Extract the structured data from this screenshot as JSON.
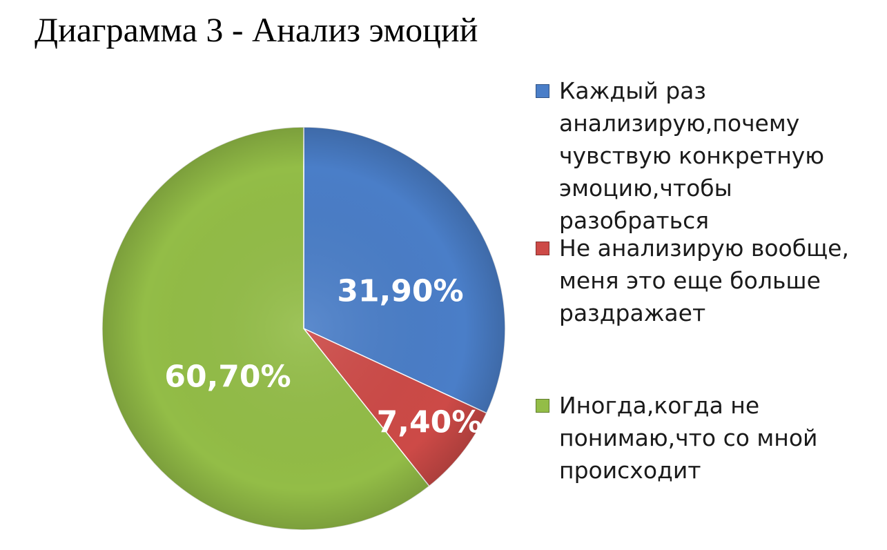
{
  "chart_data": {
    "type": "pie",
    "title": "Диаграмма 3 - Анализ эмоций",
    "slices": [
      {
        "label": "Каждый раз анализирую,почему чувствую конкретную эмоцию,чтобы разобраться",
        "value": 31.9,
        "display": "31,90%",
        "color": "#4a7ec8"
      },
      {
        "label": "Не анализирую вообще, меня это еще больше раздражает",
        "value": 7.4,
        "display": "7,40%",
        "color": "#cd4a47"
      },
      {
        "label": "Иногда,когда не понимаю,что со мной происходит",
        "value": 60.7,
        "display": "60,70%",
        "color": "#93bd47"
      }
    ],
    "legend_position": "right"
  }
}
